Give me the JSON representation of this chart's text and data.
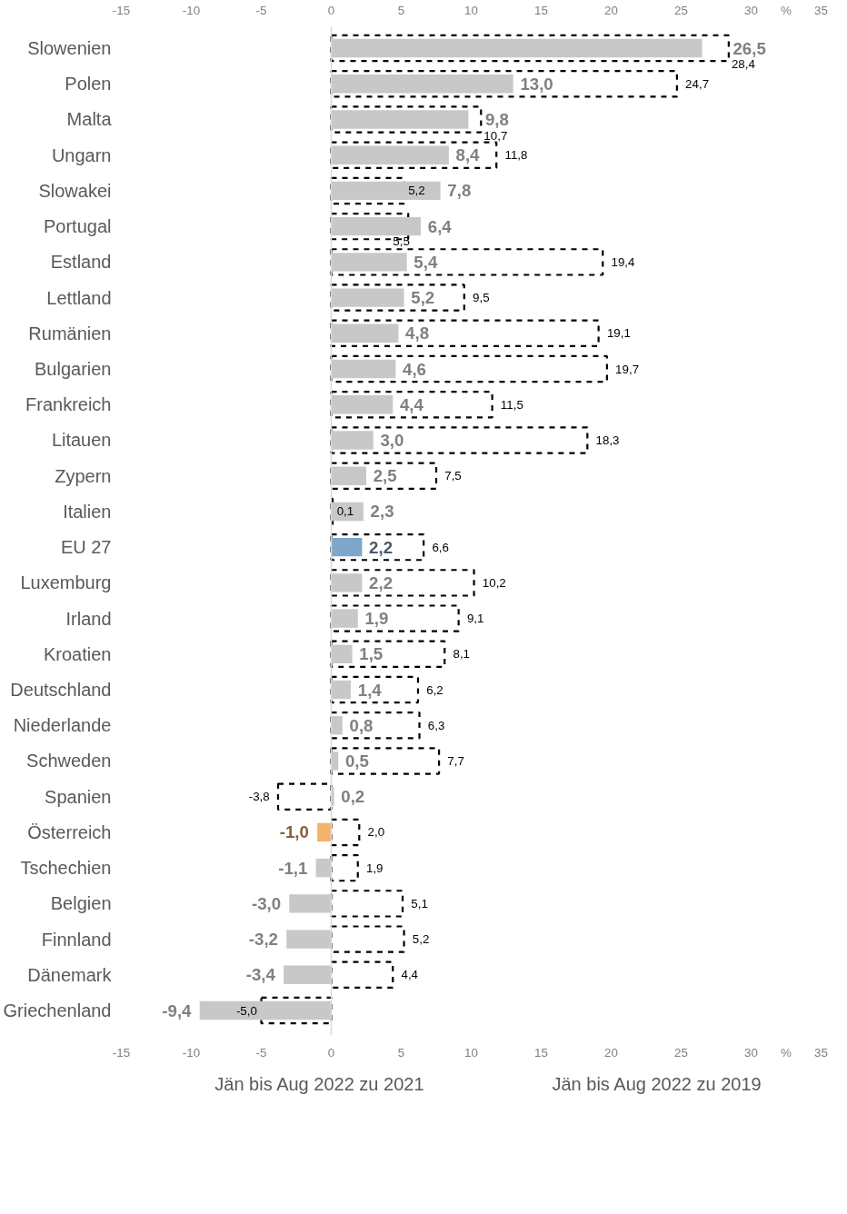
{
  "chart_data": {
    "type": "bar",
    "orientation": "horizontal",
    "categories": [
      "Slowenien",
      "Polen",
      "Malta",
      "Ungarn",
      "Slowakei",
      "Portugal",
      "Estland",
      "Lettland",
      "Rumänien",
      "Bulgarien",
      "Frankreich",
      "Litauen",
      "Zypern",
      "Italien",
      "EU 27",
      "Luxemburg",
      "Irland",
      "Kroatien",
      "Deutschland",
      "Niederlande",
      "Schweden",
      "Spanien",
      "Österreich",
      "Tschechien",
      "Belgien",
      "Finnland",
      "Dänemark",
      "Griechenland"
    ],
    "series": [
      {
        "name": "Jän bis Aug 2022 zu 2019",
        "color": "#000000",
        "line_style": "dashed",
        "values": [
          28.4,
          24.7,
          10.7,
          11.8,
          5.2,
          5.5,
          19.4,
          9.5,
          19.1,
          19.7,
          11.5,
          18.3,
          7.5,
          0.1,
          6.6,
          10.2,
          9.1,
          8.1,
          6.2,
          6.3,
          7.7,
          -3.8,
          2.0,
          1.9,
          5.1,
          5.2,
          4.4,
          -5.0
        ],
        "value_labels": [
          "28,4",
          "24,7",
          "10,7",
          "11,8",
          "5,2",
          "5,5",
          "19,4",
          "9,5",
          "19,1",
          "19,7",
          "11,5",
          "18,3",
          "7,5",
          "0,1",
          "6,6",
          "10,2",
          "9,1",
          "8,1",
          "6,2",
          "6,3",
          "7,7",
          "-3,8",
          "2,0",
          "1,9",
          "5,1",
          "5,2",
          "4,4",
          "-5,0"
        ]
      },
      {
        "name": "Jän bis Aug 2022 zu 2021",
        "color": "#c8c8c8",
        "line_style": "solid",
        "colors": [
          "#c8c8c8",
          "#c8c8c8",
          "#c8c8c8",
          "#c8c8c8",
          "#c8c8c8",
          "#c8c8c8",
          "#c8c8c8",
          "#c8c8c8",
          "#c8c8c8",
          "#c8c8c8",
          "#c8c8c8",
          "#c8c8c8",
          "#c8c8c8",
          "#c8c8c8",
          "#7ea6c9",
          "#c8c8c8",
          "#c8c8c8",
          "#c8c8c8",
          "#c8c8c8",
          "#c8c8c8",
          "#c8c8c8",
          "#c8c8c8",
          "#f4b26b",
          "#c8c8c8",
          "#c8c8c8",
          "#c8c8c8",
          "#c8c8c8",
          "#c8c8c8"
        ],
        "values": [
          26.5,
          13.0,
          9.8,
          8.4,
          7.8,
          6.4,
          5.4,
          5.2,
          4.8,
          4.6,
          4.4,
          3.0,
          2.5,
          2.3,
          2.2,
          2.2,
          1.9,
          1.5,
          1.4,
          0.8,
          0.5,
          0.2,
          -1.0,
          -1.1,
          -3.0,
          -3.2,
          -3.4,
          -9.4
        ],
        "value_labels": [
          "26,5",
          "13,0",
          "9,8",
          "8,4",
          "7,8",
          "6,4",
          "5,4",
          "5,2",
          "4,8",
          "4,6",
          "4,4",
          "3,0",
          "2,5",
          "2,3",
          "2,2",
          "2,2",
          "1,9",
          "1,5",
          "1,4",
          "0,8",
          "0,5",
          "0,2",
          "-1,0",
          "-1,1",
          "-3,0",
          "-3,2",
          "-3,4",
          "-9,4"
        ]
      }
    ],
    "xlim": [
      -15,
      35
    ],
    "xticks": [
      -15,
      -10,
      -5,
      0,
      5,
      10,
      15,
      20,
      25,
      30,
      {
        "value": 32.5,
        "label": "%"
      },
      35
    ],
    "x2lim": [
      -15,
      35
    ],
    "x2ticks": [
      -15,
      -10,
      -5,
      0,
      5,
      10,
      15,
      20,
      25,
      30,
      {
        "value": 32.5,
        "label": "%"
      },
      35
    ],
    "ref_lines": [
      {
        "axis": "x",
        "value": 0,
        "color": "#d9d9d9"
      }
    ],
    "grid": false,
    "legend": "bottom"
  }
}
